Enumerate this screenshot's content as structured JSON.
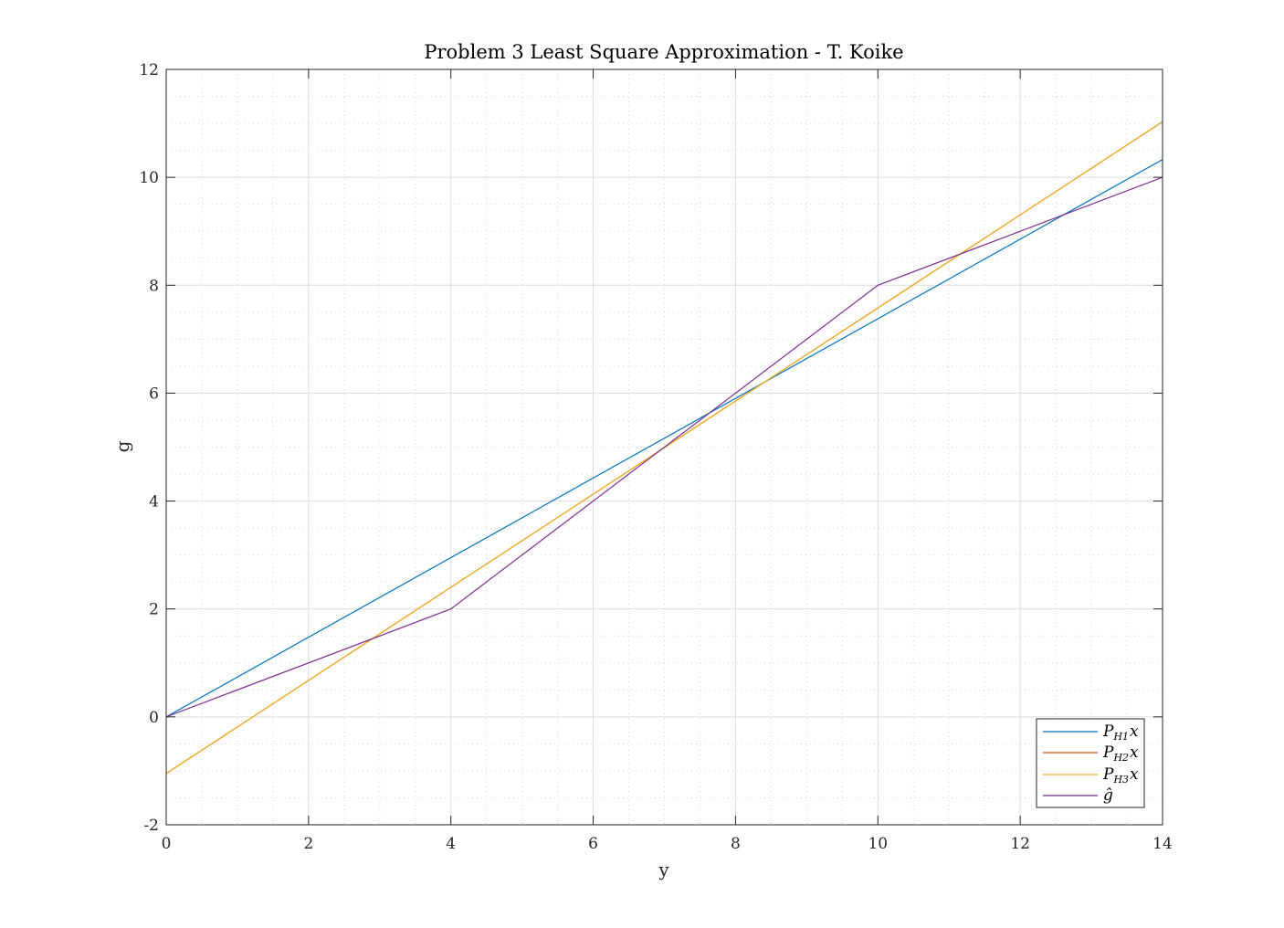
{
  "chart_data": {
    "type": "line",
    "title": "Problem 3 Least Square Approximation - T. Koike",
    "xlabel": "y",
    "ylabel": "g",
    "xlim": [
      0,
      14
    ],
    "ylim": [
      -2,
      12
    ],
    "xticks": [
      0,
      2,
      4,
      6,
      8,
      10,
      12,
      14
    ],
    "yticks": [
      -2,
      0,
      2,
      4,
      6,
      8,
      10,
      12
    ],
    "xtick_labels": [
      "0",
      "2",
      "4",
      "6",
      "8",
      "10",
      "12",
      "14"
    ],
    "ytick_labels": [
      "-2",
      "0",
      "2",
      "4",
      "6",
      "8",
      "10",
      "12"
    ],
    "grid": true,
    "minor_grid": true,
    "legend_location": "bottom-right",
    "series": [
      {
        "name": "P_H1 x",
        "legend": {
          "base": "P",
          "sub": "H",
          "index": "1",
          "suffix": "x"
        },
        "color": "#0072BD",
        "x": [
          0,
          14
        ],
        "y": [
          0,
          10.33
        ]
      },
      {
        "name": "P_H2 x",
        "legend": {
          "base": "P",
          "sub": "H",
          "index": "2",
          "suffix": "x"
        },
        "color": "#D95319",
        "x": [
          0,
          14
        ],
        "y": [
          -1.05,
          11.03
        ]
      },
      {
        "name": "P_H3 x",
        "legend": {
          "base": "P",
          "sub": "H",
          "index": "3",
          "suffix": "x"
        },
        "color": "#EDB120",
        "x": [
          0,
          14
        ],
        "y": [
          -1.05,
          11.03
        ]
      },
      {
        "name": "g hat",
        "legend": {
          "base": "ĝ",
          "sub": "",
          "index": "",
          "suffix": ""
        },
        "color": "#7E2F8E",
        "x": [
          0,
          4,
          10,
          14
        ],
        "y": [
          0,
          2,
          8,
          10
        ]
      }
    ]
  }
}
